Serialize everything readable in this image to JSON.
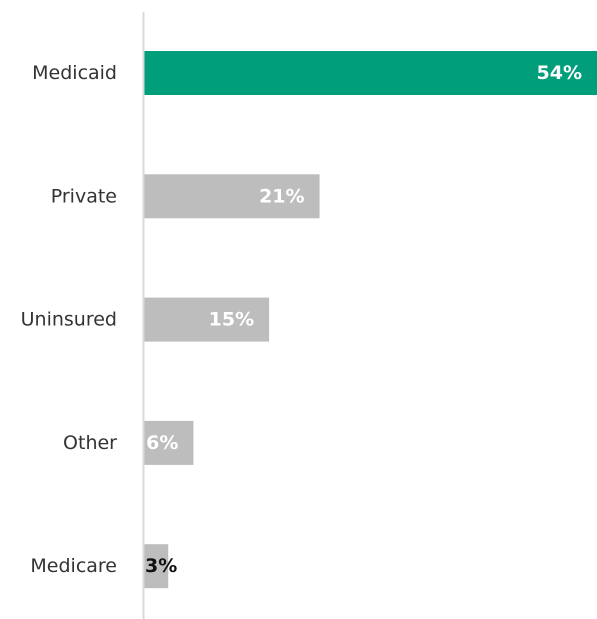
{
  "chart_data": {
    "type": "bar",
    "orientation": "horizontal",
    "categories": [
      "Medicaid",
      "Private",
      "Uninsured",
      "Other",
      "Medicare"
    ],
    "values": [
      54,
      21,
      15,
      6,
      3
    ],
    "value_labels": [
      "54%",
      "21%",
      "15%",
      "6%",
      "3%"
    ],
    "unit": "%",
    "xlim": [
      0,
      54
    ],
    "grid": false,
    "legend": "none",
    "colors": {
      "highlight": "#009e7a",
      "default": "#bdbdbd",
      "label_inside": "#ffffff",
      "label_outside": "#111111",
      "axis": "#d9d9d9",
      "category_text": "#333333"
    }
  }
}
